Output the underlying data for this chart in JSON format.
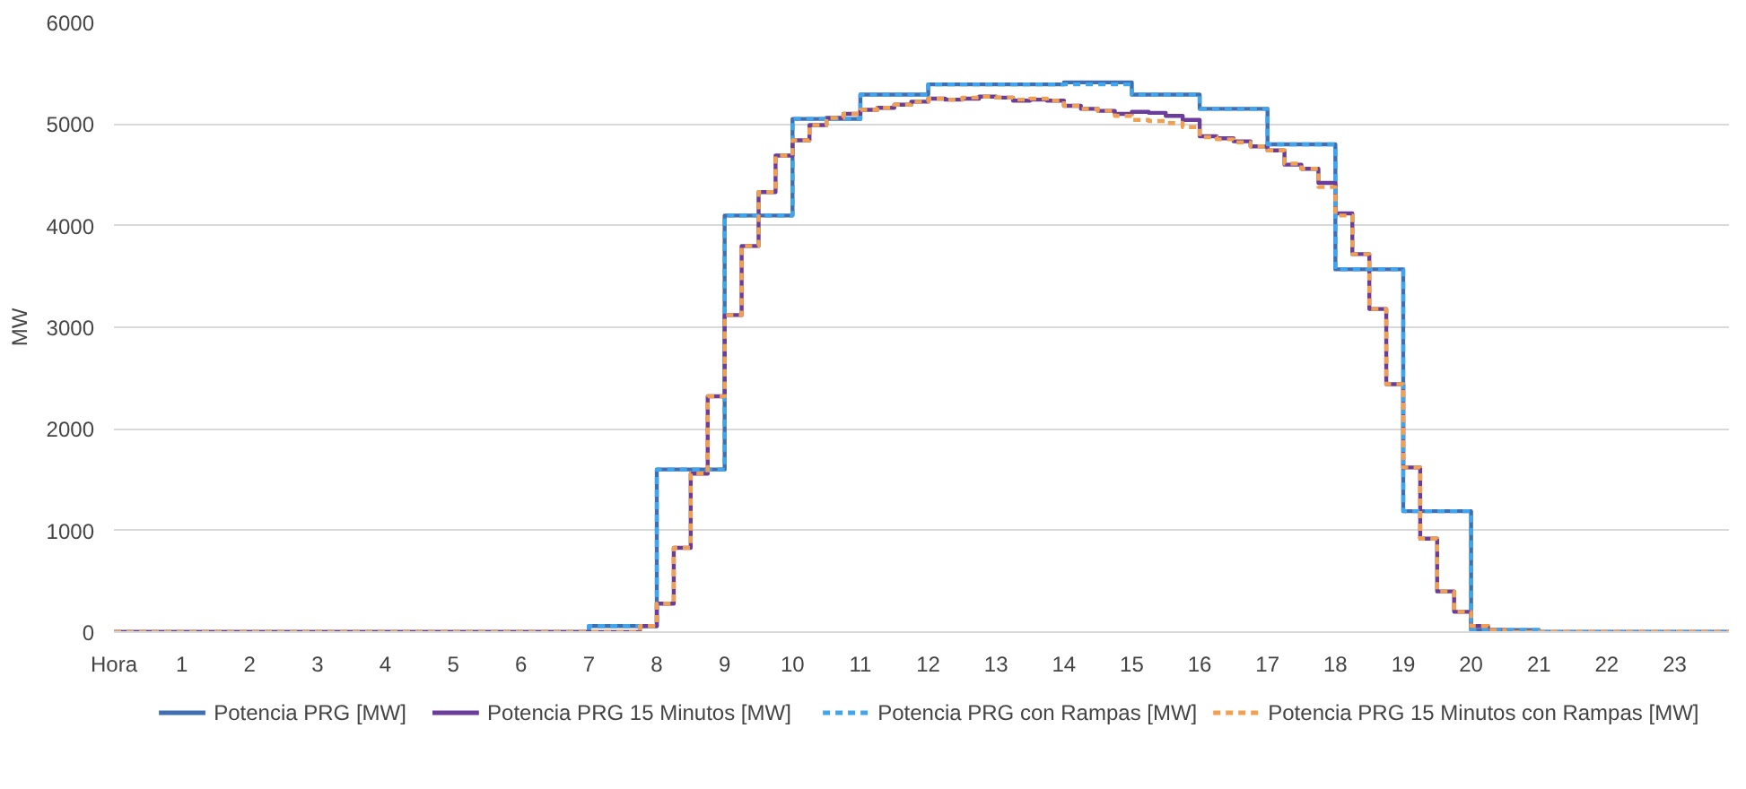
{
  "chart_data": {
    "type": "step",
    "ylabel": "MW",
    "xlim": [
      0,
      23.8
    ],
    "xticks": [
      {
        "value": 0,
        "label": "Hora"
      },
      1,
      2,
      3,
      4,
      5,
      6,
      7,
      8,
      9,
      10,
      11,
      12,
      13,
      14,
      15,
      16,
      17,
      18,
      19,
      20,
      21,
      22,
      23
    ],
    "ylim": [
      0,
      6000
    ],
    "yticks": [
      0,
      1000,
      2000,
      3000,
      4000,
      5000,
      6000
    ],
    "grid": "y",
    "legend": "bottom",
    "series": [
      {
        "name": "Potencia PRG [MW]",
        "color": "#3f6fb0",
        "line_style": "solid",
        "x": [
          0,
          7,
          8,
          9,
          10,
          11,
          12,
          13,
          14,
          15,
          16,
          17,
          18,
          19,
          20,
          21,
          23.8
        ],
        "values": [
          0,
          60,
          1600,
          4100,
          5050,
          5290,
          5390,
          5390,
          5410,
          5290,
          5150,
          4800,
          3570,
          1190,
          20,
          0,
          0
        ]
      },
      {
        "name": "Potencia PRG 15 Minutos [MW]",
        "color": "#6a3d9a",
        "line_style": "solid",
        "x": [
          0,
          7.75,
          8,
          8.25,
          8.5,
          8.75,
          9,
          9.25,
          9.5,
          9.75,
          10,
          10.25,
          10.5,
          10.75,
          11,
          11.25,
          11.5,
          11.75,
          12,
          12.25,
          12.5,
          12.75,
          13,
          13.25,
          13.5,
          13.75,
          14,
          14.25,
          14.5,
          14.75,
          15,
          15.25,
          15.5,
          15.75,
          16,
          16.25,
          16.5,
          16.75,
          17,
          17.25,
          17.5,
          17.75,
          18,
          18.25,
          18.5,
          18.75,
          19,
          19.25,
          19.5,
          19.75,
          20,
          20.25,
          20.5,
          23.8
        ],
        "values": [
          0,
          60,
          280,
          830,
          1560,
          2320,
          3120,
          3800,
          4330,
          4690,
          4840,
          4990,
          5060,
          5100,
          5140,
          5160,
          5190,
          5220,
          5250,
          5240,
          5250,
          5270,
          5260,
          5230,
          5240,
          5230,
          5180,
          5150,
          5130,
          5100,
          5120,
          5110,
          5080,
          5040,
          4880,
          4860,
          4830,
          4780,
          4740,
          4600,
          4560,
          4420,
          4120,
          3720,
          3180,
          2440,
          1620,
          920,
          400,
          200,
          60,
          20,
          0,
          0
        ]
      },
      {
        "name": "Potencia PRG con Rampas [MW]",
        "color": "#41a5ee",
        "line_style": "dashed",
        "x": [
          0,
          7,
          8,
          9,
          10,
          11,
          12,
          13,
          14,
          15,
          16,
          17,
          18,
          19,
          20,
          21,
          23.8
        ],
        "values": [
          0,
          60,
          1600,
          4100,
          5050,
          5290,
          5390,
          5390,
          5390,
          5290,
          5150,
          4800,
          3570,
          1190,
          20,
          0,
          0
        ]
      },
      {
        "name": "Potencia PRG 15 Minutos con Rampas [MW]",
        "color": "#f0a050",
        "line_style": "dashed",
        "x": [
          0,
          7.75,
          8,
          8.25,
          8.5,
          8.75,
          9,
          9.25,
          9.5,
          9.75,
          10,
          10.25,
          10.5,
          10.75,
          11,
          11.25,
          11.5,
          11.75,
          12,
          12.25,
          12.5,
          12.75,
          13,
          13.25,
          13.5,
          13.75,
          14,
          14.25,
          14.5,
          14.75,
          15,
          15.25,
          15.5,
          15.75,
          16,
          16.25,
          16.5,
          16.75,
          17,
          17.25,
          17.5,
          17.75,
          18,
          18.25,
          18.5,
          18.75,
          19,
          19.25,
          19.5,
          19.75,
          20,
          20.25,
          20.5,
          23.8
        ],
        "values": [
          0,
          60,
          280,
          830,
          1560,
          2320,
          3120,
          3800,
          4330,
          4690,
          4840,
          4990,
          5060,
          5100,
          5140,
          5160,
          5190,
          5220,
          5250,
          5240,
          5260,
          5270,
          5260,
          5240,
          5250,
          5230,
          5180,
          5150,
          5130,
          5080,
          5040,
          5030,
          5010,
          4970,
          4870,
          4850,
          4820,
          4780,
          4740,
          4610,
          4560,
          4380,
          4100,
          3720,
          3180,
          2440,
          1620,
          920,
          400,
          200,
          60,
          20,
          0,
          0
        ]
      }
    ]
  }
}
